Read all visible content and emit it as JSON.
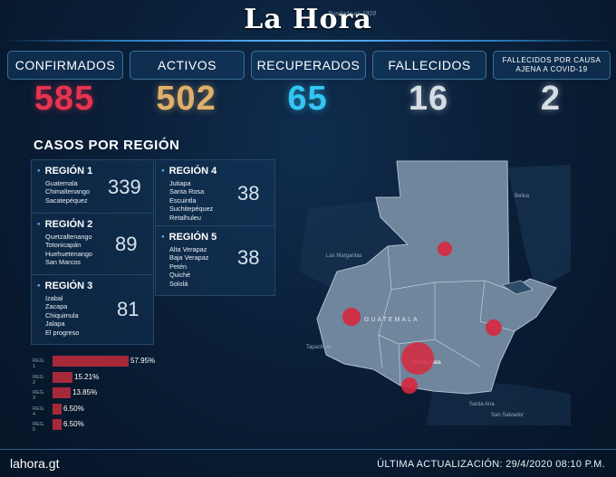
{
  "brand": {
    "name": "La Hora",
    "tagline": "Fundado en 1920"
  },
  "stats": [
    {
      "label": "CONFIRMADOS",
      "value": "585",
      "color": "#e8334f"
    },
    {
      "label": "ACTIVOS",
      "value": "502",
      "color": "#e0b06a"
    },
    {
      "label": "RECUPERADOS",
      "value": "65",
      "color": "#33c6f2"
    },
    {
      "label": "FALLECIDOS",
      "value": "16",
      "color": "#d7dde4"
    },
    {
      "label": "FALLECIDOS POR CAUSA AJENA A COVID-19",
      "value": "2",
      "color": "#d7dde4"
    }
  ],
  "section_title": "CASOS POR REGIÓN",
  "regions": [
    {
      "title": "REGIÓN 1",
      "count": "339",
      "departments": [
        "Guatemala",
        "Chimaltenango",
        "Sacatepéquez"
      ]
    },
    {
      "title": "REGIÓN 2",
      "count": "89",
      "departments": [
        "Quetzaltenango",
        "Totonicapán",
        "Huehuetenango",
        "San Marcos"
      ]
    },
    {
      "title": "REGIÓN 3",
      "count": "81",
      "departments": [
        "Izabal",
        "Zacapa",
        "Chiquimula",
        "Jalapa",
        "El progreso"
      ]
    },
    {
      "title": "REGIÓN 4",
      "count": "38",
      "departments": [
        "Jutiapa",
        "Santa Rosa",
        "Escuintla",
        "Suchitepéquez",
        "Retalhuleu"
      ]
    },
    {
      "title": "REGIÓN 5",
      "count": "38",
      "departments": [
        "Alta Verapaz",
        "Baja Verapaz",
        "Petén",
        "Quiché",
        "Sololá"
      ]
    }
  ],
  "chart_data": {
    "type": "bar",
    "categories": [
      "REG. 1",
      "REG. 2",
      "REG. 3",
      "REG. 4",
      "REG. 5"
    ],
    "values": [
      57.95,
      15.21,
      13.85,
      6.5,
      6.5
    ],
    "labels": [
      "57.95%",
      "15.21%",
      "13.85%",
      "6.50%",
      "6.50%"
    ],
    "color": "#a6293a"
  },
  "map": {
    "country_label": "GUATEMALA",
    "place_labels": [
      "Belice",
      "Las Margaritas",
      "Tapachula",
      "Guatemala",
      "Santa Ana",
      "San Salvador"
    ],
    "fill": "#6f869d"
  },
  "footer": {
    "site": "lahora.gt",
    "updated": "ÚLTIMA ACTUALIZACIÓN: 29/4/2020  08:10 P.M."
  }
}
